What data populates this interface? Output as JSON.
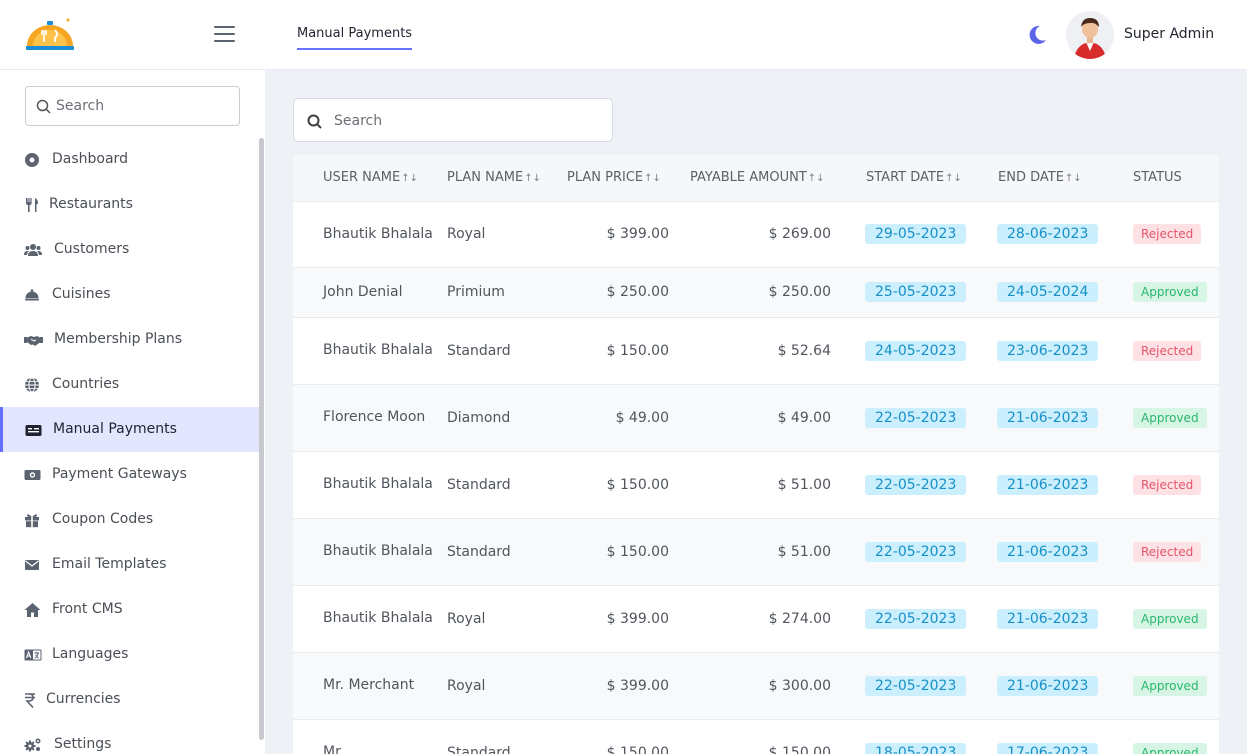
{
  "header": {
    "page_tab": "Manual Payments",
    "user_name": "Super Admin"
  },
  "sidebar": {
    "search_placeholder": "Search",
    "items": [
      {
        "label": "Dashboard",
        "icon": "dashboard-icon"
      },
      {
        "label": "Restaurants",
        "icon": "utensils-icon"
      },
      {
        "label": "Customers",
        "icon": "users-icon"
      },
      {
        "label": "Cuisines",
        "icon": "cuisine-icon"
      },
      {
        "label": "Membership Plans",
        "icon": "handshake-icon"
      },
      {
        "label": "Countries",
        "icon": "globe-icon"
      },
      {
        "label": "Manual Payments",
        "icon": "money-check-icon",
        "active": true
      },
      {
        "label": "Payment Gateways",
        "icon": "money-bill-icon"
      },
      {
        "label": "Coupon Codes",
        "icon": "gift-icon"
      },
      {
        "label": "Email Templates",
        "icon": "envelope-icon"
      },
      {
        "label": "Front CMS",
        "icon": "home-icon"
      },
      {
        "label": "Languages",
        "icon": "language-icon"
      },
      {
        "label": "Currencies",
        "icon": "rupee-icon"
      },
      {
        "label": "Settings",
        "icon": "cogs-icon"
      }
    ]
  },
  "main": {
    "search_placeholder": "Search",
    "columns": [
      "USER NAME",
      "PLAN NAME",
      "PLAN PRICE",
      "PAYABLE AMOUNT",
      "START DATE",
      "END DATE",
      "STATUS"
    ],
    "rows": [
      {
        "user": "Bhautik Bhalala",
        "plan": "Royal",
        "price": "$ 399.00",
        "payable": "$ 269.00",
        "start": "29-05-2023",
        "end": "28-06-2023",
        "status": "Rejected"
      },
      {
        "user": "John Denial",
        "plan": "Primium",
        "price": "$ 250.00",
        "payable": "$ 250.00",
        "start": "25-05-2023",
        "end": "24-05-2024",
        "status": "Approved"
      },
      {
        "user": "Bhautik Bhalala",
        "plan": "Standard",
        "price": "$ 150.00",
        "payable": "$ 52.64",
        "start": "24-05-2023",
        "end": "23-06-2023",
        "status": "Rejected"
      },
      {
        "user": "Florence Moon",
        "plan": "Diamond",
        "price": "$ 49.00",
        "payable": "$ 49.00",
        "start": "22-05-2023",
        "end": "21-06-2023",
        "status": "Approved"
      },
      {
        "user": "Bhautik Bhalala",
        "plan": "Standard",
        "price": "$ 150.00",
        "payable": "$ 51.00",
        "start": "22-05-2023",
        "end": "21-06-2023",
        "status": "Rejected"
      },
      {
        "user": "Bhautik Bhalala",
        "plan": "Standard",
        "price": "$ 150.00",
        "payable": "$ 51.00",
        "start": "22-05-2023",
        "end": "21-06-2023",
        "status": "Rejected"
      },
      {
        "user": "Bhautik Bhalala",
        "plan": "Royal",
        "price": "$ 399.00",
        "payable": "$ 274.00",
        "start": "22-05-2023",
        "end": "21-06-2023",
        "status": "Approved"
      },
      {
        "user": "Mr. Merchant",
        "plan": "Royal",
        "price": "$ 399.00",
        "payable": "$ 300.00",
        "start": "22-05-2023",
        "end": "21-06-2023",
        "status": "Approved"
      },
      {
        "user": "Mr.",
        "plan": "Standard",
        "price": "$ 150.00",
        "payable": "$ 150.00",
        "start": "18-05-2023",
        "end": "17-06-2023",
        "status": "Approved"
      }
    ]
  },
  "colors": {
    "accent": "#6571ff",
    "active_bg": "#e4e6ff",
    "date_bg": "#cceffd",
    "date_text": "#1790c8",
    "rejected_bg": "#fde1e5",
    "rejected_text": "#e4566c",
    "approved_bg": "#d7f5e5",
    "approved_text": "#28b76b"
  }
}
